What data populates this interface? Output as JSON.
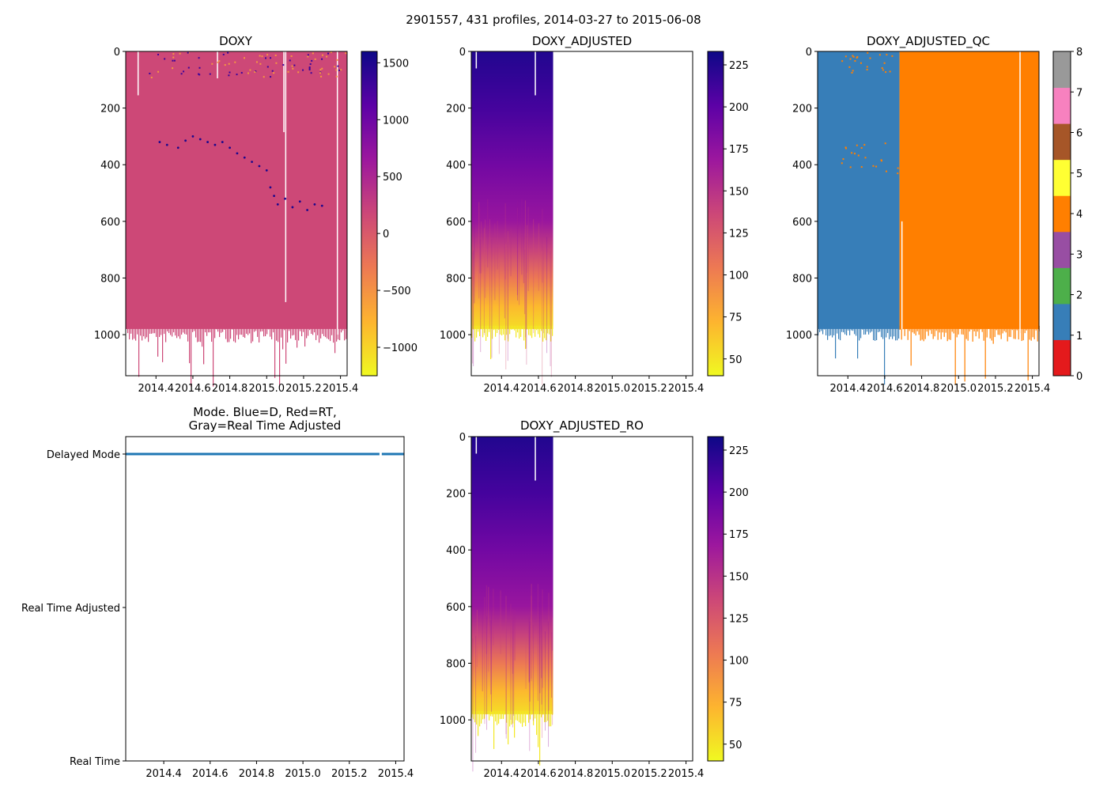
{
  "figure_title": "2901557, 431 profiles, 2014-03-27 to 2015-06-08",
  "colors": {
    "plasma_r": [
      "#f0f921",
      "#fdb42f",
      "#ed7953",
      "#cc4778",
      "#9c179e",
      "#5c01a6",
      "#0d0887"
    ],
    "mode_line": "#1f77b4",
    "qc_classes": [
      "#e41a1c",
      "#377eb8",
      "#4daf4a",
      "#984ea3",
      "#ff7f00",
      "#ffff33",
      "#a65628",
      "#f781bf",
      "#999999"
    ]
  },
  "chart_data": [
    {
      "id": "doxy",
      "type": "heatmap",
      "title": "DOXY",
      "x": {
        "min": 2014.236,
        "max": 2015.436,
        "data_end": 2015.436,
        "ticks": [
          2014.4,
          2014.6,
          2014.8,
          2015.0,
          2015.2,
          2015.4
        ],
        "tick_labels": [
          "2014.4",
          "2014.6",
          "2014.8",
          "2015.0",
          "2015.2",
          "2015.4"
        ]
      },
      "y": {
        "min": 0,
        "max": 1145,
        "inverted": true,
        "ticks": [
          0,
          200,
          400,
          600,
          800,
          1000
        ],
        "tick_labels": [
          "0",
          "200",
          "400",
          "600",
          "800",
          "1000"
        ],
        "profile_bottom": 980
      },
      "colorbar": {
        "min": -1250,
        "max": 1600,
        "ticks": [
          -1000,
          -500,
          0,
          500,
          1000,
          1500
        ],
        "tick_labels": [
          "−1000",
          "−500",
          "0",
          "500",
          "1000",
          "1500"
        ]
      },
      "field_value": 165,
      "outliers": [
        {
          "x": 2014.42,
          "y": 320
        },
        {
          "x": 2014.46,
          "y": 330
        },
        {
          "x": 2014.52,
          "y": 340
        },
        {
          "x": 2014.56,
          "y": 315
        },
        {
          "x": 2014.6,
          "y": 300
        },
        {
          "x": 2014.64,
          "y": 310
        },
        {
          "x": 2014.68,
          "y": 320
        },
        {
          "x": 2014.72,
          "y": 330
        },
        {
          "x": 2014.76,
          "y": 320
        },
        {
          "x": 2014.8,
          "y": 340
        },
        {
          "x": 2014.84,
          "y": 360
        },
        {
          "x": 2014.88,
          "y": 375
        },
        {
          "x": 2014.92,
          "y": 390
        },
        {
          "x": 2014.96,
          "y": 405
        },
        {
          "x": 2015.0,
          "y": 420
        },
        {
          "x": 2015.02,
          "y": 480
        },
        {
          "x": 2015.04,
          "y": 510
        },
        {
          "x": 2015.06,
          "y": 540
        },
        {
          "x": 2015.1,
          "y": 520
        },
        {
          "x": 2015.14,
          "y": 550
        },
        {
          "x": 2015.18,
          "y": 530
        },
        {
          "x": 2015.22,
          "y": 560
        },
        {
          "x": 2015.26,
          "y": 540
        },
        {
          "x": 2015.3,
          "y": 545
        }
      ]
    },
    {
      "id": "doxy_adjusted",
      "type": "heatmap",
      "title": "DOXY_ADJUSTED",
      "x": {
        "min": 2014.236,
        "max": 2015.436,
        "data_end": 2014.68,
        "ticks": [
          2014.4,
          2014.6,
          2014.8,
          2015.0,
          2015.2,
          2015.4
        ],
        "tick_labels": [
          "2014.4",
          "2014.6",
          "2014.8",
          "2015.0",
          "2015.2",
          "2015.4"
        ]
      },
      "y": {
        "min": 0,
        "max": 1145,
        "inverted": true,
        "ticks": [
          0,
          200,
          400,
          600,
          800,
          1000
        ],
        "tick_labels": [
          "0",
          "200",
          "400",
          "600",
          "800",
          "1000"
        ],
        "profile_bottom": 980
      },
      "colorbar": {
        "min": 40,
        "max": 233,
        "ticks": [
          50,
          75,
          100,
          125,
          150,
          175,
          200,
          225
        ],
        "tick_labels": [
          "50",
          "75",
          "100",
          "125",
          "150",
          "175",
          "200",
          "225"
        ]
      },
      "depth_profile": [
        {
          "depth": 0,
          "value": 225
        },
        {
          "depth": 200,
          "value": 210
        },
        {
          "depth": 400,
          "value": 190
        },
        {
          "depth": 600,
          "value": 170
        },
        {
          "depth": 700,
          "value": 140
        },
        {
          "depth": 800,
          "value": 105
        },
        {
          "depth": 900,
          "value": 70
        },
        {
          "depth": 1000,
          "value": 48
        }
      ]
    },
    {
      "id": "doxy_adjusted_qc",
      "type": "heatmap",
      "title": "DOXY_ADJUSTED_QC",
      "x": {
        "min": 2014.236,
        "max": 2015.436,
        "data_end": 2015.436,
        "ticks": [
          2014.4,
          2014.6,
          2014.8,
          2015.0,
          2015.2,
          2015.4
        ],
        "tick_labels": [
          "2014.4",
          "2014.6",
          "2014.8",
          "2015.0",
          "2015.2",
          "2015.4"
        ]
      },
      "y": {
        "min": 0,
        "max": 1145,
        "inverted": true,
        "ticks": [
          0,
          200,
          400,
          600,
          800,
          1000
        ],
        "tick_labels": [
          "0",
          "200",
          "400",
          "600",
          "800",
          "1000"
        ],
        "profile_bottom": 980
      },
      "colorbar": {
        "min": 0,
        "max": 8,
        "ticks": [
          0,
          1,
          2,
          3,
          4,
          5,
          6,
          7,
          8
        ],
        "tick_labels": [
          "0",
          "1",
          "2",
          "3",
          "4",
          "5",
          "6",
          "7",
          "8"
        ]
      },
      "segments": [
        {
          "x_start": 2014.236,
          "x_end": 2014.68,
          "qc": 1
        },
        {
          "x_start": 2014.68,
          "x_end": 2015.436,
          "qc": 4
        }
      ]
    },
    {
      "id": "mode",
      "type": "line",
      "title": "Mode. Blue=D, Red=RT,",
      "title_line2": "Gray=Real Time Adjusted",
      "x": {
        "min": 2014.236,
        "max": 2015.436,
        "ticks": [
          2014.4,
          2014.6,
          2014.8,
          2015.0,
          2015.2,
          2015.4
        ],
        "tick_labels": [
          "2014.4",
          "2014.6",
          "2014.8",
          "2015.0",
          "2015.2",
          "2015.4"
        ]
      },
      "y": {
        "min": 0,
        "max": 2,
        "ticks": [
          0,
          1,
          2
        ],
        "tick_labels": [
          "Real Time",
          "Real Time Adjusted",
          "Delayed Mode"
        ]
      },
      "series": [
        {
          "name": "Delayed Mode",
          "x_start": 2014.236,
          "x_end": 2015.436,
          "y": 2,
          "gap": [
            2015.33,
            2015.34
          ]
        }
      ]
    },
    {
      "id": "doxy_adjusted_ro",
      "type": "heatmap",
      "title": "DOXY_ADJUSTED_RO",
      "x": {
        "min": 2014.236,
        "max": 2015.436,
        "data_end": 2014.68,
        "ticks": [
          2014.4,
          2014.6,
          2014.8,
          2015.0,
          2015.2,
          2015.4
        ],
        "tick_labels": [
          "2014.4",
          "2014.6",
          "2014.8",
          "2015.0",
          "2015.2",
          "2015.4"
        ]
      },
      "y": {
        "min": 0,
        "max": 1145,
        "inverted": true,
        "ticks": [
          0,
          200,
          400,
          600,
          800,
          1000
        ],
        "tick_labels": [
          "0",
          "200",
          "400",
          "600",
          "800",
          "1000"
        ],
        "profile_bottom": 980
      },
      "colorbar": {
        "min": 40,
        "max": 233,
        "ticks": [
          50,
          75,
          100,
          125,
          150,
          175,
          200,
          225
        ],
        "tick_labels": [
          "50",
          "75",
          "100",
          "125",
          "150",
          "175",
          "200",
          "225"
        ]
      },
      "depth_profile": [
        {
          "depth": 0,
          "value": 225
        },
        {
          "depth": 200,
          "value": 210
        },
        {
          "depth": 400,
          "value": 190
        },
        {
          "depth": 600,
          "value": 170
        },
        {
          "depth": 700,
          "value": 140
        },
        {
          "depth": 800,
          "value": 105
        },
        {
          "depth": 900,
          "value": 70
        },
        {
          "depth": 1000,
          "value": 48
        }
      ]
    }
  ]
}
